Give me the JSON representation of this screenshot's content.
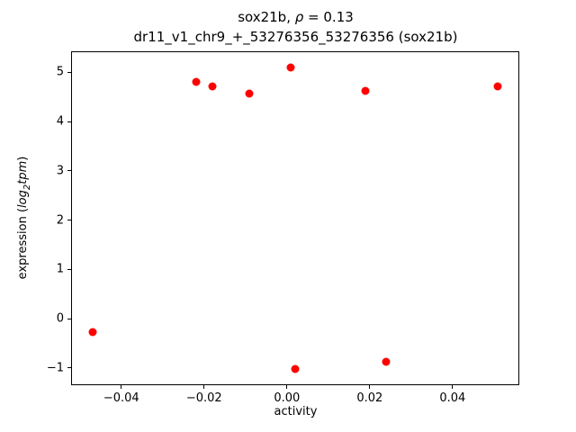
{
  "figure": {
    "title_prefix": "sox21b, ",
    "title_rho": "ρ",
    "title_suffix": " = 0.13",
    "title_line2": "dr11_v1_chr9_+_53276356_53276356 (sox21b)",
    "xlabel": "activity",
    "ylabel_prefix": "expression (",
    "ylabel_log": "log",
    "ylabel_sub": "2",
    "ylabel_tpm": "tpm",
    "ylabel_suffix": ")"
  },
  "chart_data": {
    "type": "scatter",
    "title": "sox21b, ρ = 0.13\ndr11_v1_chr9_+_53276356_53276356 (sox21b)",
    "xlabel": "activity",
    "ylabel": "expression (log2 tpm)",
    "marker_color": "#ff0000",
    "grid": false,
    "legend": false,
    "xlim": [
      -0.0519,
      0.0559
    ],
    "ylim": [
      -1.33,
      5.41
    ],
    "xticks": [
      -0.04,
      -0.02,
      0.0,
      0.02,
      0.04
    ],
    "yticks": [
      -1,
      0,
      1,
      2,
      3,
      4,
      5
    ],
    "points": [
      {
        "x": -0.047,
        "y": -0.27
      },
      {
        "x": -0.022,
        "y": 4.8
      },
      {
        "x": -0.018,
        "y": 4.71
      },
      {
        "x": -0.009,
        "y": 4.57
      },
      {
        "x": 0.001,
        "y": 5.1
      },
      {
        "x": 0.002,
        "y": -1.02
      },
      {
        "x": 0.019,
        "y": 4.63
      },
      {
        "x": 0.024,
        "y": -0.88
      },
      {
        "x": 0.051,
        "y": 4.71
      }
    ]
  }
}
